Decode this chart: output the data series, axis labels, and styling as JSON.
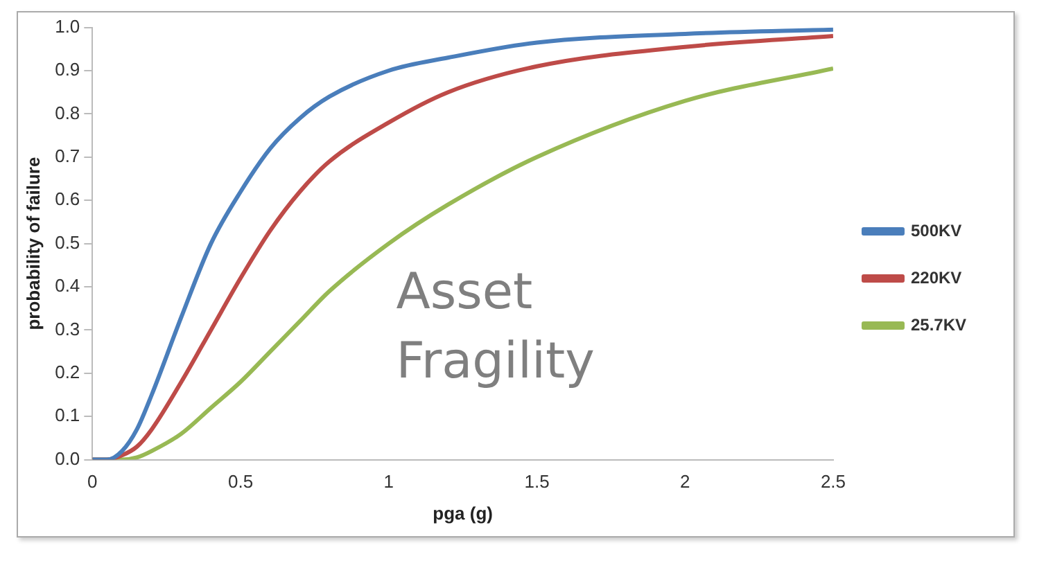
{
  "chart_data": {
    "type": "line",
    "xlabel": "pga (g)",
    "ylabel": "probability of failure",
    "annotations": [
      "Asset Fragility"
    ],
    "xlim": [
      0,
      2.5
    ],
    "xticks": [
      0,
      0.5,
      1,
      1.5,
      2,
      2.5
    ],
    "ylim": [
      0,
      1
    ],
    "yticks": [
      {
        "value": 0,
        "label": "0.0"
      },
      {
        "value": 0.1,
        "label": "0.1"
      },
      {
        "value": 0.2,
        "label": "0.2"
      },
      {
        "value": 0.3,
        "label": "0.3"
      },
      {
        "value": 0.4,
        "label": "0.4"
      },
      {
        "value": 0.5,
        "label": "0.5"
      },
      {
        "value": 0.6,
        "label": "0.6"
      },
      {
        "value": 0.7,
        "label": "0.7"
      },
      {
        "value": 0.8,
        "label": "0.8"
      },
      {
        "value": 0.9,
        "label": "0.9"
      },
      {
        "value": 1,
        "label": "1.0"
      }
    ],
    "x": [
      0,
      0.05,
      0.1,
      0.15,
      0.2,
      0.3,
      0.4,
      0.5,
      0.6,
      0.7,
      0.8,
      1.0,
      1.2,
      1.5,
      2.0,
      2.5
    ],
    "series": [
      {
        "name": "500KV",
        "color": "#4a7ebb",
        "values": [
          0,
          0,
          0.02,
          0.07,
          0.15,
          0.33,
          0.5,
          0.62,
          0.72,
          0.79,
          0.84,
          0.9,
          0.93,
          0.965,
          0.985,
          0.995
        ]
      },
      {
        "name": "220KV",
        "color": "#be4b48",
        "values": [
          0,
          0,
          0.01,
          0.03,
          0.07,
          0.18,
          0.3,
          0.42,
          0.53,
          0.62,
          0.69,
          0.78,
          0.85,
          0.91,
          0.955,
          0.98
        ]
      },
      {
        "name": "25.7KV",
        "color": "#98b954",
        "values": [
          0,
          0,
          0,
          0.005,
          0.02,
          0.06,
          0.12,
          0.18,
          0.25,
          0.32,
          0.39,
          0.5,
          0.59,
          0.7,
          0.83,
          0.905
        ]
      }
    ],
    "legend": "right",
    "grid": false,
    "marker": "none",
    "line_style": "solid"
  }
}
